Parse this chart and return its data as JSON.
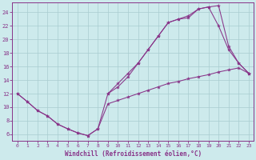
{
  "xlabel": "Windchill (Refroidissement éolien,°C)",
  "bg_color": "#cdeaec",
  "grid_color": "#a8cdd0",
  "line_color": "#883388",
  "xlim_min": -0.5,
  "xlim_max": 23.5,
  "ylim_min": 5.0,
  "ylim_max": 25.5,
  "xticks": [
    0,
    1,
    2,
    3,
    4,
    5,
    6,
    7,
    8,
    9,
    10,
    11,
    12,
    13,
    14,
    15,
    16,
    17,
    18,
    19,
    20,
    21,
    22,
    23
  ],
  "yticks": [
    6,
    8,
    10,
    12,
    14,
    16,
    18,
    20,
    22,
    24
  ],
  "line1": {
    "x": [
      0,
      1,
      2,
      3,
      4,
      5,
      6,
      7,
      8,
      9,
      10,
      11,
      12,
      13,
      14,
      15,
      16,
      17,
      18,
      19,
      20,
      21,
      22,
      23
    ],
    "y": [
      12,
      10.8,
      9.5,
      8.7,
      7.5,
      6.8,
      6.2,
      5.8,
      6.8,
      12.0,
      13.0,
      14.5,
      16.5,
      18.5,
      20.5,
      22.5,
      23.0,
      23.2,
      24.5,
      24.8,
      22.0,
      18.5,
      16.5,
      15.0
    ]
  },
  "line2": {
    "x": [
      9,
      10,
      11,
      12,
      13,
      14,
      15,
      16,
      17,
      18,
      19,
      20,
      21,
      22,
      23
    ],
    "y": [
      12.0,
      13.5,
      15.0,
      16.5,
      18.5,
      20.5,
      22.5,
      23.0,
      23.5,
      24.5,
      24.8,
      25.0,
      19.0,
      16.5,
      15.0
    ]
  },
  "line3": {
    "x": [
      0,
      1,
      2,
      3,
      4,
      5,
      6,
      7,
      8,
      9,
      10,
      11,
      12,
      13,
      14,
      15,
      16,
      17,
      18,
      19,
      20,
      21,
      22,
      23
    ],
    "y": [
      12.0,
      10.8,
      9.5,
      8.7,
      7.5,
      6.8,
      6.2,
      5.8,
      6.8,
      10.5,
      11.0,
      11.5,
      12.0,
      12.5,
      13.0,
      13.5,
      13.8,
      14.2,
      14.5,
      14.8,
      15.2,
      15.5,
      15.8,
      15.0
    ]
  }
}
